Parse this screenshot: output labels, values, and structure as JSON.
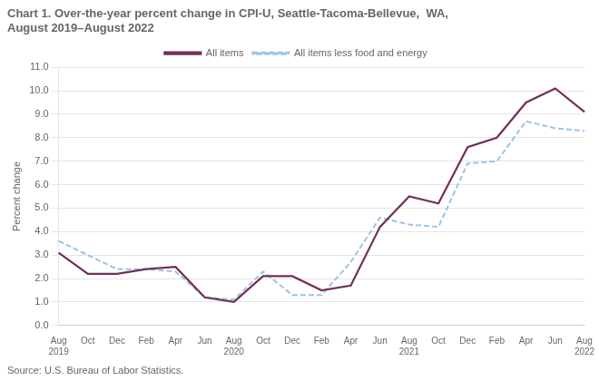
{
  "chart_data": {
    "type": "line",
    "title": "Chart 1. Over-the-year percent change in CPI-U, Seattle-Tacoma-Bellevue,  WA,\nAugust 2019–August 2022",
    "y_label": "Percent change",
    "source": "Source: U.S. Bureau of Labor Statistics.",
    "categories": [
      "Aug\n2019",
      "Oct",
      "Dec",
      "Feb",
      "Apr",
      "Jun",
      "Aug\n2020",
      "Oct",
      "Dec",
      "Feb",
      "Apr",
      "Jun",
      "Aug\n2021",
      "Oct",
      "Dec",
      "Feb",
      "Apr",
      "Jun",
      "Aug\n2022"
    ],
    "series": [
      {
        "name": "All items",
        "color": "#722F58",
        "line_style": "solid",
        "values": [
          3.1,
          2.2,
          2.2,
          2.4,
          2.5,
          1.2,
          1.0,
          2.1,
          2.1,
          1.5,
          1.7,
          4.2,
          5.5,
          5.2,
          7.6,
          8.0,
          9.5,
          10.1,
          9.1
        ]
      },
      {
        "name": "All items less food and energy",
        "color": "#9DC3E6",
        "line_style": "dashed",
        "values": [
          3.6,
          3.0,
          2.4,
          2.4,
          2.3,
          1.2,
          1.1,
          2.3,
          1.3,
          1.3,
          2.7,
          4.6,
          4.3,
          4.2,
          6.9,
          7.0,
          8.7,
          8.4,
          8.3
        ]
      }
    ],
    "ylim": [
      0.0,
      11.0
    ],
    "yticks": [
      {
        "value": 0.0,
        "label": "0.0"
      },
      {
        "value": 1.0,
        "label": "1.0"
      },
      {
        "value": 2.0,
        "label": "2.0"
      },
      {
        "value": 3.0,
        "label": "3.0"
      },
      {
        "value": 4.0,
        "label": "4.0"
      },
      {
        "value": 5.0,
        "label": "5.0"
      },
      {
        "value": 6.0,
        "label": "6.0"
      },
      {
        "value": 7.0,
        "label": "7.0"
      },
      {
        "value": 8.0,
        "label": "8.0"
      },
      {
        "value": 9.0,
        "label": "9.0"
      },
      {
        "value": 10.0,
        "label": "10.0"
      },
      {
        "value": 11.0,
        "label": "11.0"
      }
    ],
    "grid": "y",
    "legend": "top"
  }
}
